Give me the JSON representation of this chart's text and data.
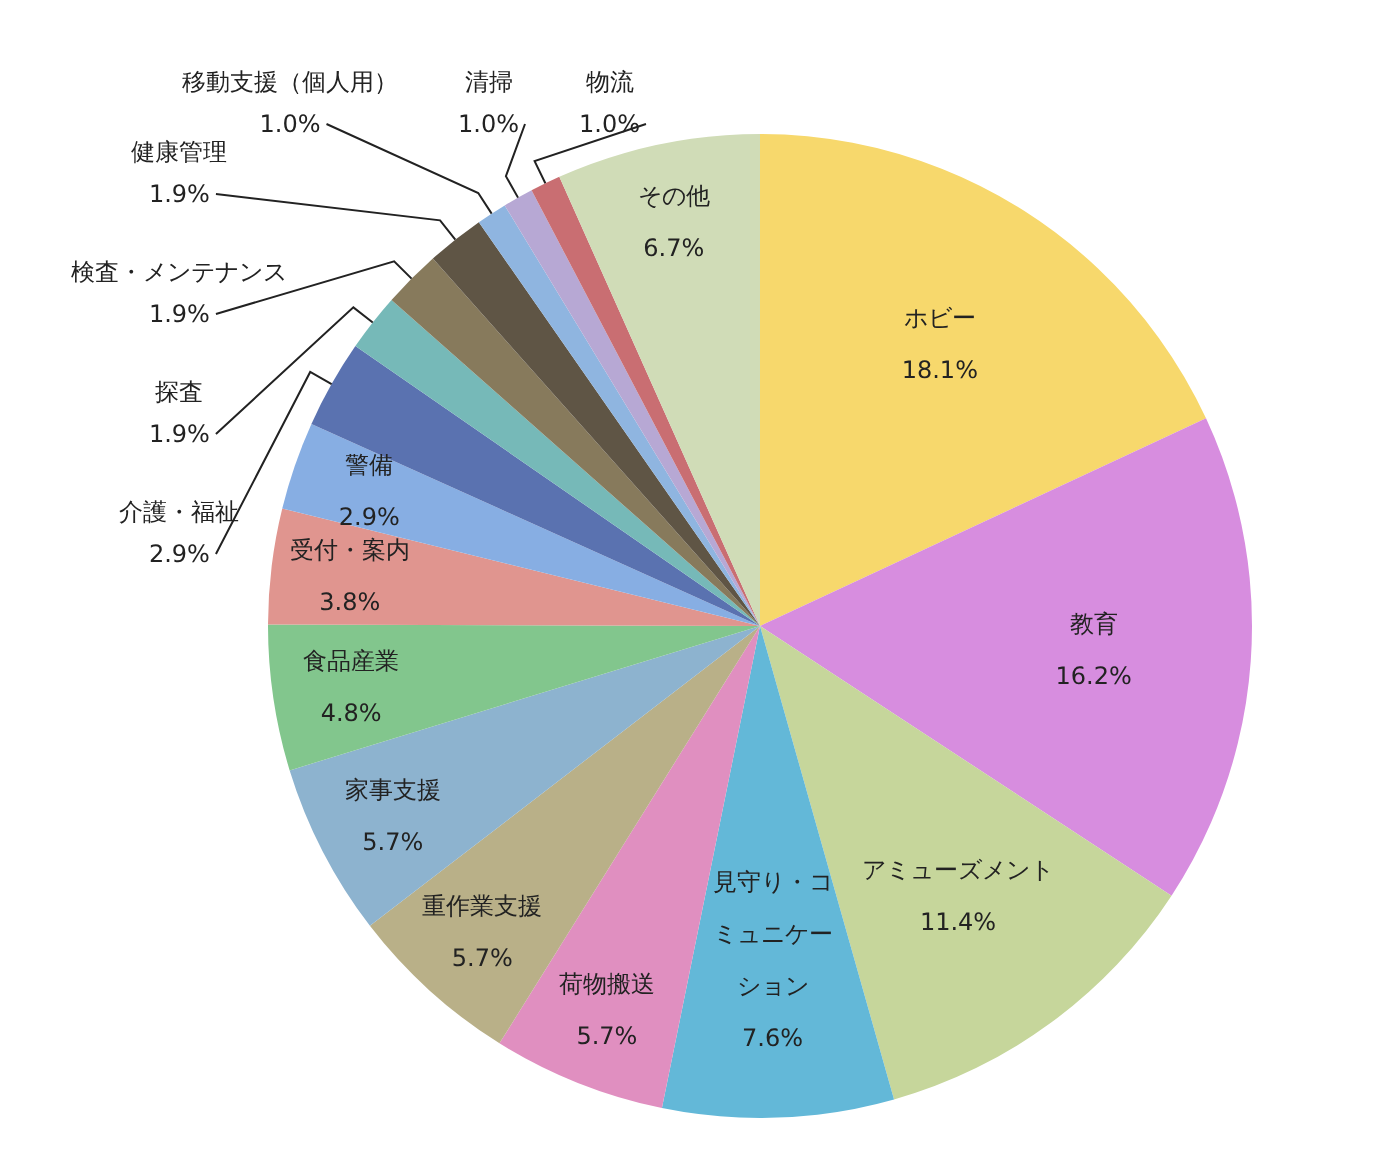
{
  "chart_data": {
    "type": "pie",
    "categories": [
      "ホビー",
      "教育",
      "アミューズメント",
      "見守り・コミュニケーション",
      "荷物搬送",
      "重作業支援",
      "家事支援",
      "食品産業",
      "受付・案内",
      "警備",
      "介護・福祉",
      "探査",
      "検査・メンテナンス",
      "健康管理",
      "移動支援（個人用）",
      "清掃",
      "物流",
      "その他"
    ],
    "values": [
      18.1,
      16.2,
      11.4,
      7.6,
      5.7,
      5.7,
      5.7,
      4.8,
      3.8,
      2.9,
      2.9,
      1.9,
      1.9,
      1.9,
      1.0,
      1.0,
      1.0,
      6.7
    ],
    "value_labels": [
      "18.1%",
      "16.2%",
      "11.4%",
      "7.6%",
      "5.7%",
      "5.7%",
      "5.7%",
      "4.8%",
      "3.8%",
      "2.9%",
      "2.9%",
      "1.9%",
      "1.9%",
      "1.9%",
      "1.0%",
      "1.0%",
      "1.0%",
      "6.7%"
    ],
    "colors": [
      "#f7d86c",
      "#d78ddf",
      "#c6d69b",
      "#63b8d8",
      "#e08fc0",
      "#b9b088",
      "#8db3cf",
      "#82c68d",
      "#e0958f",
      "#87aee3",
      "#5a72b0",
      "#76b9b8",
      "#877a5c",
      "#5f5545",
      "#8fb5e0",
      "#b7a8d4",
      "#c96e72",
      "#d0dcb7"
    ]
  }
}
